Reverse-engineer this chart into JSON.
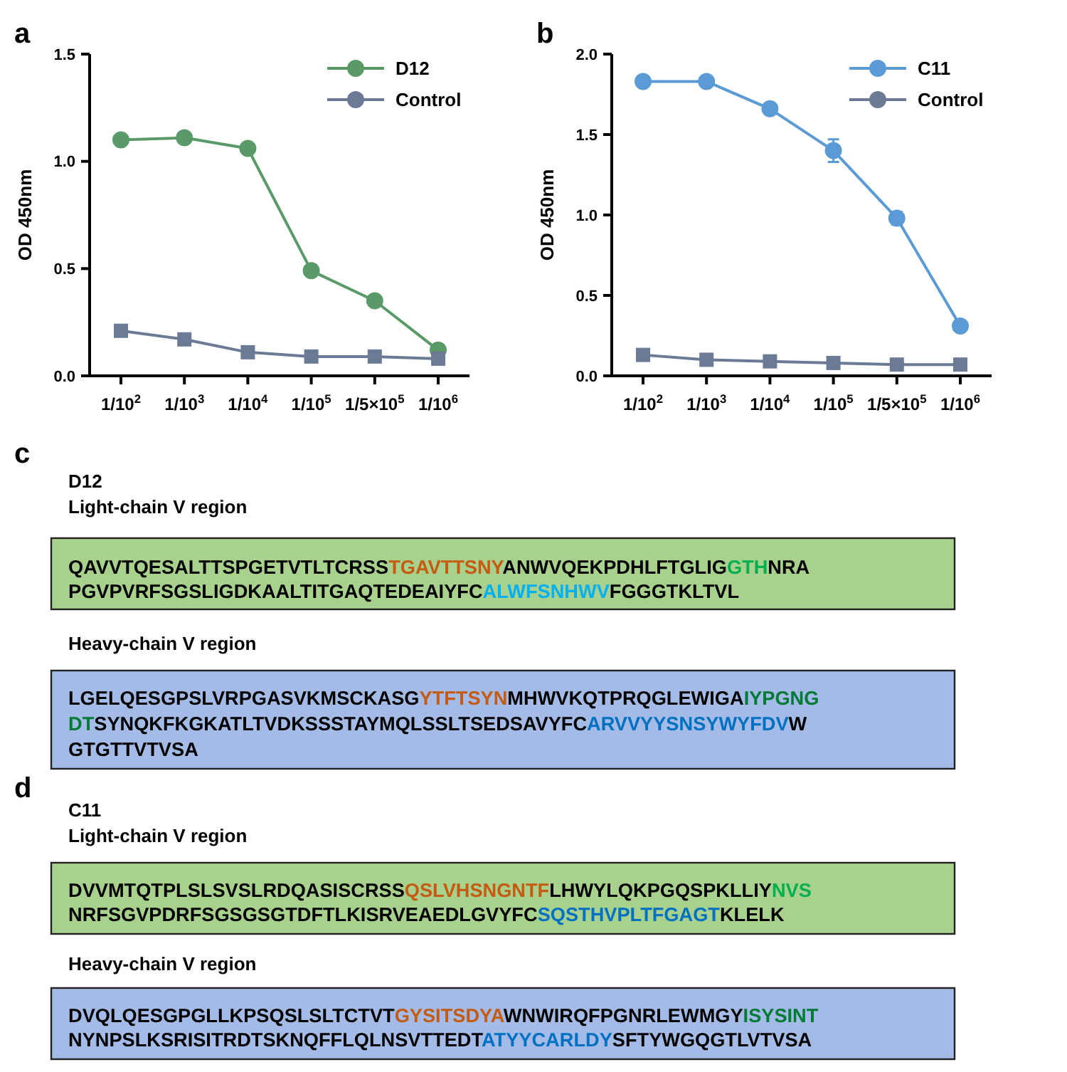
{
  "chart_data": [
    {
      "type": "line",
      "title": "a",
      "ylabel": "OD 450nm",
      "categories": [
        "1/10$^{2}$",
        "1/10$^{3}$",
        "1/10$^{4}$",
        "1/10$^{5}$",
        "1/5×10$^{5}$",
        "1/10$^{6}$"
      ],
      "ylim": [
        0,
        1.5
      ],
      "yticks": [
        {
          "value": 0,
          "label": "0.0"
        },
        {
          "value": 0.5,
          "label": "0.5"
        },
        {
          "value": 1,
          "label": "1.0"
        },
        {
          "value": 1.5,
          "label": "1.5"
        }
      ],
      "legend": "top right",
      "grid": false,
      "series": [
        {
          "name": "D12",
          "color": "#5a9a68",
          "marker": "circle",
          "values": [
            1.1,
            1.11,
            1.06,
            0.49,
            0.35,
            0.12
          ]
        },
        {
          "name": "Control",
          "color": "#6b7a95",
          "marker": "square",
          "values": [
            0.21,
            0.17,
            0.11,
            0.09,
            0.09,
            0.08
          ]
        }
      ]
    },
    {
      "type": "line",
      "title": "b",
      "ylabel": "OD 450nm",
      "categories": [
        "1/10$^{2}$",
        "1/10$^{3}$",
        "1/10$^{4}$",
        "1/10$^{5}$",
        "1/5×10$^{5}$",
        "1/10$^{6}$"
      ],
      "ylim": [
        0,
        2
      ],
      "yticks": [
        {
          "value": 0,
          "label": "0.0"
        },
        0.5,
        {
          "value": 1,
          "label": "1.0"
        },
        1.5,
        {
          "value": 2,
          "label": "2.0"
        }
      ],
      "legend": "top right",
      "grid": false,
      "series": [
        {
          "name": "C11",
          "color": "#5b9bd5",
          "marker": "circle",
          "values": [
            1.83,
            1.83,
            1.66,
            1.4,
            0.98,
            0.31
          ],
          "errors": [
            null,
            null,
            null,
            0.07,
            0.04,
            null
          ]
        },
        {
          "name": "Control",
          "color": "#6b7a95",
          "marker": "square",
          "values": [
            0.13,
            0.1,
            0.09,
            0.08,
            0.07,
            0.07
          ]
        }
      ]
    },
    {
      "type": "other",
      "annotations": [
        "c",
        "D12",
        "Light-chain V region",
        "QAVVTQESALTTSPGETVTLTCRSS",
        "TGAVTTSNY",
        "ANWVQEKPDHLFTGLIG",
        "GTH",
        "NRA",
        "PGVPVRFSGSLIGDKAALTITGAQTEDEAIYFC",
        "ALWFSNHWV",
        "FGGGTKLTVL",
        "Heavy-chain V region",
        "LGELQESGPSLVRPGASVKMSCKASG",
        "YTFTSYN",
        "MHWVKQTPRQGLEWIGA",
        "IYPGNG",
        "DT",
        "SYNQKFKGKATLTVDKSSSTAYMQLSSLTSEDSAVYFC",
        "ARVVYYSNSYWYFDV",
        "W",
        "GTGTTVTVSA",
        "d",
        "C11",
        "Light-chain V region",
        "DVVMTQTPLSLSVSLRDQASISCRSS",
        "QSLVHSNGNTF",
        "LHWYLQKPGQSPKLLIY",
        "NVS",
        "NRFSGVPDRFSGSGSGTDFTLKISRVEAEDLGVYFC",
        "SQSTHVPLTFGAGT",
        "KLELK",
        "Heavy-chain V region",
        "DVQLQESGPGLLKPSQSLSLTCTVT",
        "GYSITSDYA",
        "WNWIRQFPGNRLEWMGY",
        "ISYSINT",
        "NYNPSLKSRISITRDTSKNQFFLQLNSVTTEDT",
        "ATYYCARLDY",
        "SFTYWGQGTLVTVSA"
      ],
      "colors": [
        "#000000",
        "#000000",
        "#000000",
        "#000000",
        "#c55a11",
        "#000000",
        "#00b050",
        "#000000",
        "#000000",
        "#00b0f0",
        "#000000",
        "#000000",
        "#000000",
        "#c55a11",
        "#000000",
        "#007a35",
        "#007a35",
        "#000000",
        "#0070c0",
        "#000000",
        "#000000",
        "#000000",
        "#000000",
        "#000000",
        "#000000",
        "#c55a11",
        "#000000",
        "#00b050",
        "#000000",
        "#0070c0",
        "#000000",
        "#000000",
        "#000000",
        "#c55a11",
        "#000000",
        "#007a35",
        "#000000",
        "#0070c0",
        "#000000"
      ]
    }
  ]
}
